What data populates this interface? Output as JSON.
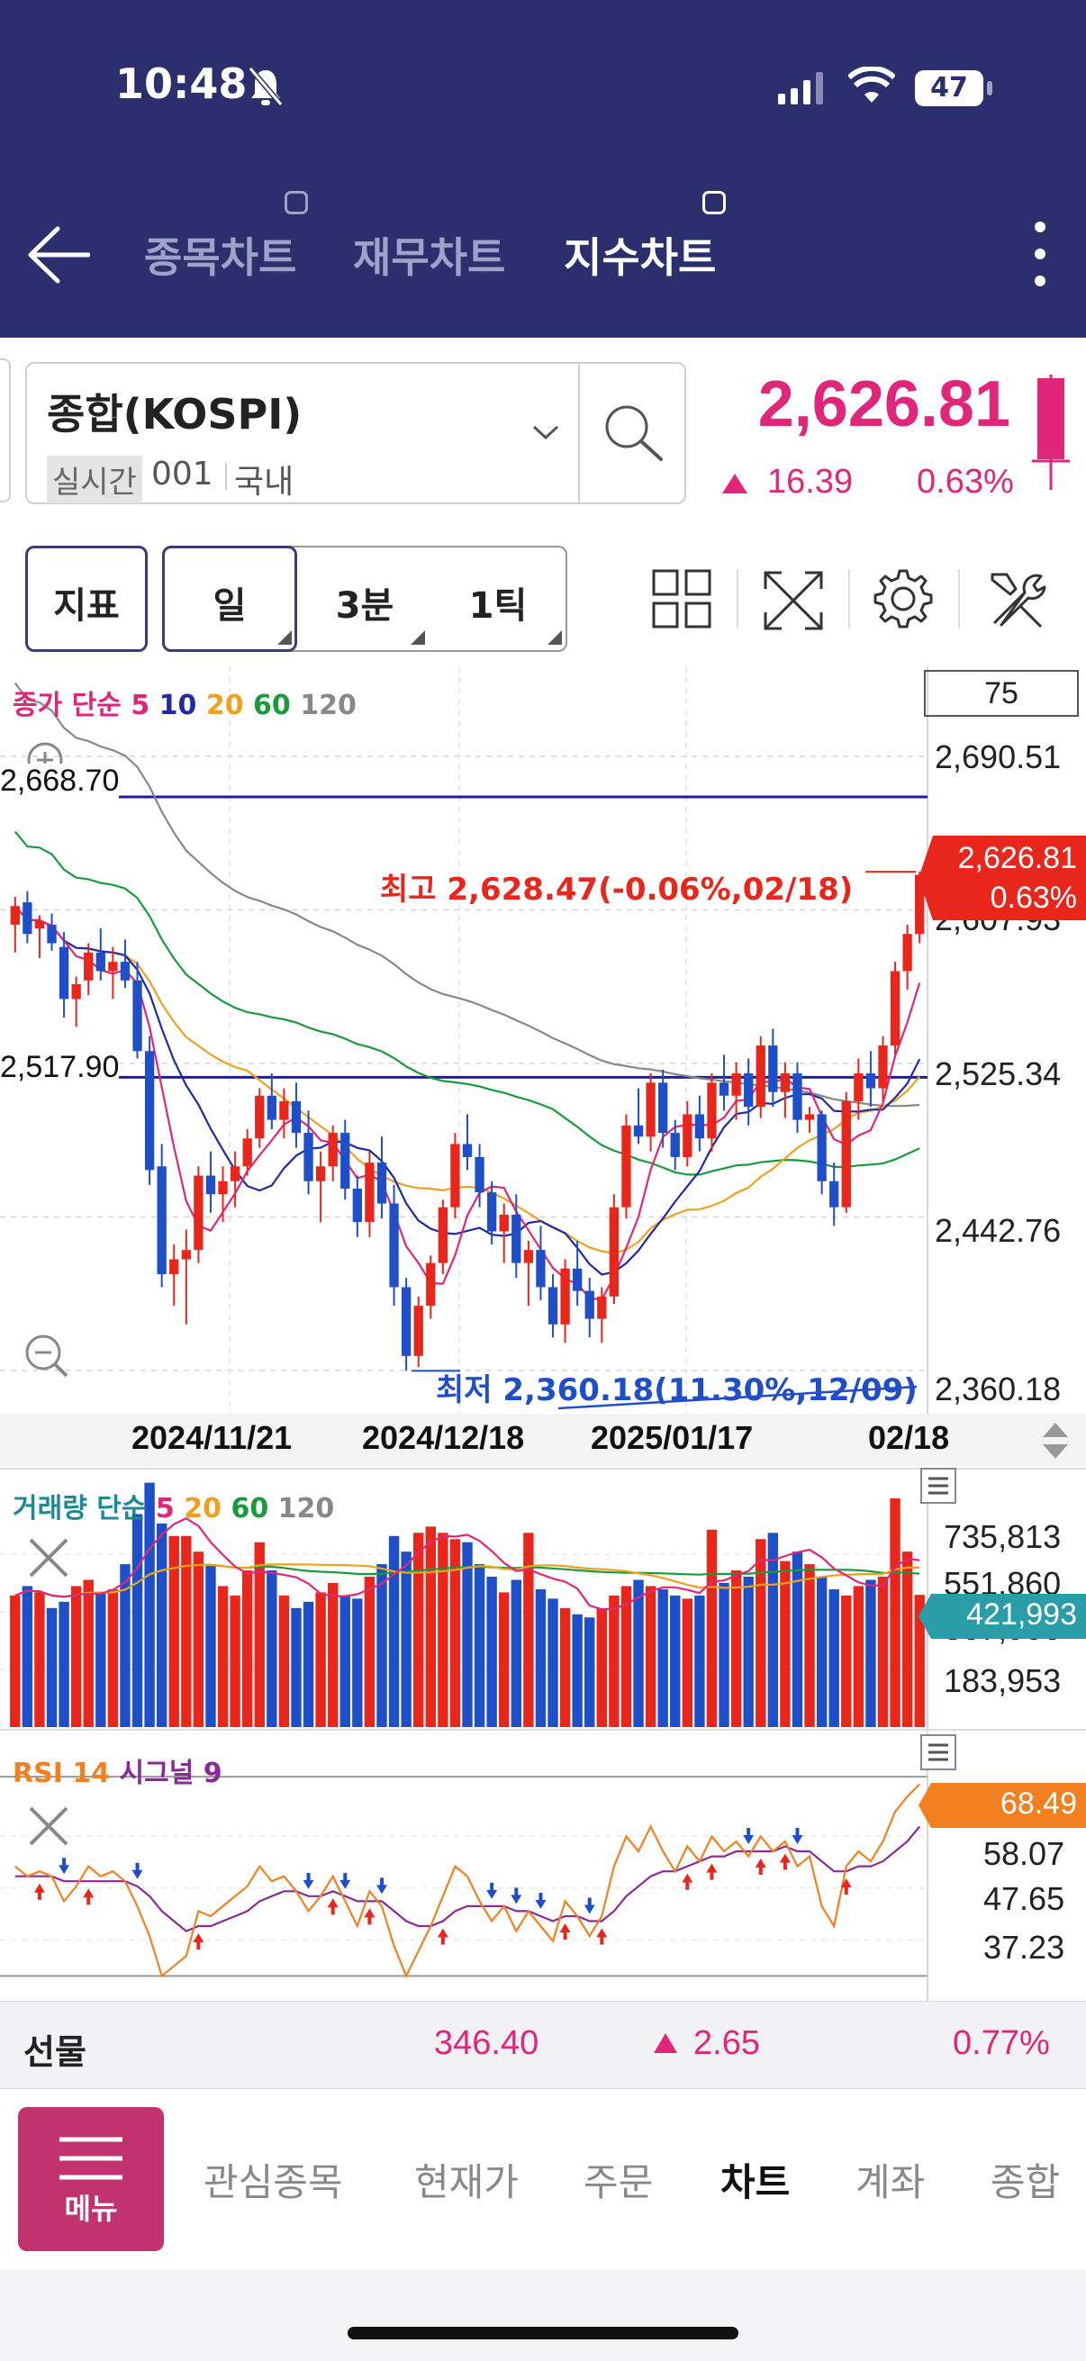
{
  "status": {
    "time": "10:48",
    "battery": "47"
  },
  "header": {
    "tabs": [
      {
        "label": "종목차트",
        "active": false
      },
      {
        "label": "재무차트",
        "active": false
      },
      {
        "label": "지수차트",
        "active": true
      }
    ]
  },
  "symbol": {
    "name": "종합(KOSPI)",
    "realtime_label": "실시간",
    "code": "001",
    "market": "국내",
    "price": "2,626.81",
    "change": "16.39",
    "change_pct": "0.63%"
  },
  "toolbar": {
    "indicator": "지표",
    "periods": [
      "일",
      "3분",
      "1틱"
    ]
  },
  "colors": {
    "up": "#e8261b",
    "down": "#1f4fc8",
    "accent": "#e0267a",
    "header": "#2c2f6e",
    "ma5": "#e0267a",
    "ma10": "#1f2aa6",
    "ma20": "#f0a020",
    "ma60": "#1a9a3a",
    "ma120": "#888888",
    "rsi": "#f28020",
    "signal": "#8a2a96"
  },
  "chart_data": [
    {
      "type": "candlestick",
      "legend": {
        "price": "종가",
        "method": "단순",
        "periods": [
          "5",
          "10",
          "20",
          "60",
          "120"
        ]
      },
      "visible_count": "75",
      "y_ticks": [
        "2,690.51",
        "2,607.93",
        "2,525.34",
        "2,442.76",
        "2,360.18"
      ],
      "ylim": [
        2360.18,
        2690.51
      ],
      "x_labels": [
        "2024/11/21",
        "2024/12/18",
        "2025/01/17",
        "02/18"
      ],
      "hlines": [
        {
          "label": "2,668.70",
          "value": 2668.7
        },
        {
          "label": "2,517.90",
          "value": 2517.9
        }
      ],
      "current": {
        "price": "2,626.81",
        "pct": "0.63%"
      },
      "high_annotation": "최고 2,628.47(-0.06%,02/18)",
      "low_annotation": "최저 2,360.18(11.30%,12/09)",
      "candles": [
        [
          2600,
          2615,
          2585,
          2610
        ],
        [
          2612,
          2618,
          2590,
          2595
        ],
        [
          2598,
          2605,
          2582,
          2602
        ],
        [
          2600,
          2606,
          2586,
          2590
        ],
        [
          2588,
          2596,
          2550,
          2560
        ],
        [
          2560,
          2572,
          2545,
          2568
        ],
        [
          2570,
          2590,
          2562,
          2585
        ],
        [
          2585,
          2598,
          2570,
          2575
        ],
        [
          2575,
          2588,
          2560,
          2580
        ],
        [
          2580,
          2592,
          2566,
          2570
        ],
        [
          2570,
          2580,
          2528,
          2532
        ],
        [
          2532,
          2540,
          2460,
          2468
        ],
        [
          2470,
          2482,
          2405,
          2412
        ],
        [
          2412,
          2428,
          2395,
          2420
        ],
        [
          2420,
          2436,
          2385,
          2425
        ],
        [
          2425,
          2470,
          2418,
          2465
        ],
        [
          2465,
          2478,
          2445,
          2455
        ],
        [
          2455,
          2470,
          2440,
          2462
        ],
        [
          2462,
          2478,
          2448,
          2470
        ],
        [
          2470,
          2490,
          2465,
          2485
        ],
        [
          2485,
          2512,
          2480,
          2508
        ],
        [
          2508,
          2520,
          2490,
          2495
        ],
        [
          2495,
          2512,
          2485,
          2505
        ],
        [
          2505,
          2515,
          2480,
          2488
        ],
        [
          2488,
          2500,
          2455,
          2462
        ],
        [
          2462,
          2478,
          2440,
          2470
        ],
        [
          2470,
          2492,
          2462,
          2488
        ],
        [
          2488,
          2495,
          2452,
          2458
        ],
        [
          2458,
          2465,
          2432,
          2440
        ],
        [
          2440,
          2478,
          2432,
          2472
        ],
        [
          2472,
          2486,
          2442,
          2450
        ],
        [
          2450,
          2460,
          2395,
          2405
        ],
        [
          2405,
          2410,
          2360,
          2368
        ],
        [
          2368,
          2400,
          2362,
          2395
        ],
        [
          2395,
          2422,
          2388,
          2418
        ],
        [
          2418,
          2452,
          2412,
          2448
        ],
        [
          2448,
          2488,
          2442,
          2482
        ],
        [
          2482,
          2498,
          2468,
          2475
        ],
        [
          2475,
          2482,
          2448,
          2456
        ],
        [
          2456,
          2462,
          2428,
          2435
        ],
        [
          2435,
          2450,
          2418,
          2444
        ],
        [
          2444,
          2455,
          2410,
          2418
        ],
        [
          2418,
          2430,
          2395,
          2425
        ],
        [
          2425,
          2438,
          2398,
          2405
        ],
        [
          2405,
          2412,
          2378,
          2385
        ],
        [
          2385,
          2420,
          2375,
          2415
        ],
        [
          2415,
          2430,
          2395,
          2403
        ],
        [
          2403,
          2410,
          2378,
          2388
        ],
        [
          2388,
          2405,
          2375,
          2400
        ],
        [
          2400,
          2455,
          2396,
          2448
        ],
        [
          2448,
          2498,
          2442,
          2492
        ],
        [
          2492,
          2512,
          2482,
          2486
        ],
        [
          2486,
          2520,
          2478,
          2515
        ],
        [
          2515,
          2522,
          2480,
          2488
        ],
        [
          2488,
          2495,
          2468,
          2475
        ],
        [
          2475,
          2505,
          2470,
          2498
        ],
        [
          2498,
          2508,
          2478,
          2485
        ],
        [
          2485,
          2520,
          2478,
          2515
        ],
        [
          2515,
          2530,
          2500,
          2508
        ],
        [
          2508,
          2526,
          2495,
          2520
        ],
        [
          2520,
          2528,
          2492,
          2502
        ],
        [
          2502,
          2540,
          2496,
          2535
        ],
        [
          2535,
          2544,
          2502,
          2510
        ],
        [
          2510,
          2526,
          2496,
          2520
        ],
        [
          2520,
          2526,
          2488,
          2495
        ],
        [
          2495,
          2502,
          2488,
          2498
        ],
        [
          2498,
          2500,
          2455,
          2462
        ],
        [
          2462,
          2472,
          2438,
          2448
        ],
        [
          2448,
          2510,
          2445,
          2505
        ],
        [
          2505,
          2528,
          2495,
          2520
        ],
        [
          2520,
          2532,
          2502,
          2512
        ],
        [
          2512,
          2540,
          2505,
          2535
        ],
        [
          2535,
          2580,
          2530,
          2575
        ],
        [
          2575,
          2600,
          2565,
          2595
        ],
        [
          2595,
          2628.47,
          2590,
          2626.81
        ]
      ]
    },
    {
      "type": "bar",
      "title": "거래량",
      "legend": {
        "method": "단순",
        "periods": [
          "5",
          "20",
          "60",
          "120"
        ]
      },
      "y_ticks": [
        "735,813",
        "551,860",
        "367,906",
        "183,953"
      ],
      "ylim": [
        0,
        735813
      ],
      "current": "421,993",
      "values": [
        420000,
        450000,
        430000,
        380000,
        400000,
        450000,
        470000,
        430000,
        440000,
        520000,
        680000,
        780000,
        650000,
        610000,
        610000,
        560000,
        520000,
        450000,
        420000,
        500000,
        590000,
        500000,
        420000,
        380000,
        400000,
        430000,
        460000,
        420000,
        410000,
        480000,
        520000,
        610000,
        560000,
        620000,
        640000,
        620000,
        600000,
        590000,
        520000,
        480000,
        430000,
        470000,
        620000,
        440000,
        410000,
        380000,
        360000,
        350000,
        380000,
        420000,
        450000,
        470000,
        450000,
        440000,
        420000,
        410000,
        420000,
        630000,
        460000,
        500000,
        480000,
        600000,
        620000,
        530000,
        560000,
        520000,
        480000,
        440000,
        420000,
        450000,
        470000,
        480000,
        730000,
        560000,
        421993
      ]
    },
    {
      "type": "line",
      "title": "RSI",
      "legend": {
        "period": "14",
        "signal_label": "시그널",
        "signal": "9"
      },
      "y_ticks": [
        "58.07",
        "47.65",
        "37.23"
      ],
      "current": "68.49",
      "rsi": [
        52,
        50,
        51,
        50,
        45,
        48,
        52,
        50,
        51,
        49,
        44,
        38,
        30,
        32,
        34,
        43,
        42,
        44,
        46,
        48,
        52,
        49,
        50,
        47,
        43,
        46,
        50,
        45,
        40,
        47,
        44,
        36,
        30,
        35,
        40,
        46,
        52,
        50,
        45,
        41,
        44,
        39,
        43,
        40,
        37,
        45,
        42,
        38,
        42,
        52,
        58,
        55,
        60,
        55,
        51,
        56,
        53,
        58,
        55,
        57,
        54,
        58,
        55,
        57,
        52,
        54,
        44,
        40,
        52,
        55,
        53,
        57,
        63,
        66,
        68.49
      ],
      "signal": [
        50,
        50,
        50,
        50,
        49,
        49,
        49,
        49,
        49,
        49,
        48,
        46,
        43,
        41,
        39,
        40,
        40,
        41,
        42,
        43,
        45,
        46,
        47,
        47,
        46,
        46,
        47,
        46,
        45,
        45,
        45,
        43,
        41,
        40,
        40,
        41,
        43,
        44,
        44,
        44,
        44,
        43,
        43,
        42,
        41,
        42,
        42,
        41,
        41,
        43,
        46,
        48,
        50,
        51,
        51,
        52,
        53,
        54,
        54,
        55,
        55,
        55,
        55,
        56,
        55,
        55,
        53,
        51,
        51,
        52,
        52,
        53,
        55,
        57,
        60
      ]
    }
  ],
  "futures": {
    "label": "선물",
    "price": "346.40",
    "change": "2.65",
    "pct": "0.77%"
  },
  "nav": {
    "menu": "메뉴",
    "items": [
      "관심종목",
      "현재가",
      "주문",
      "차트",
      "계좌",
      "종합"
    ],
    "active": "차트"
  }
}
